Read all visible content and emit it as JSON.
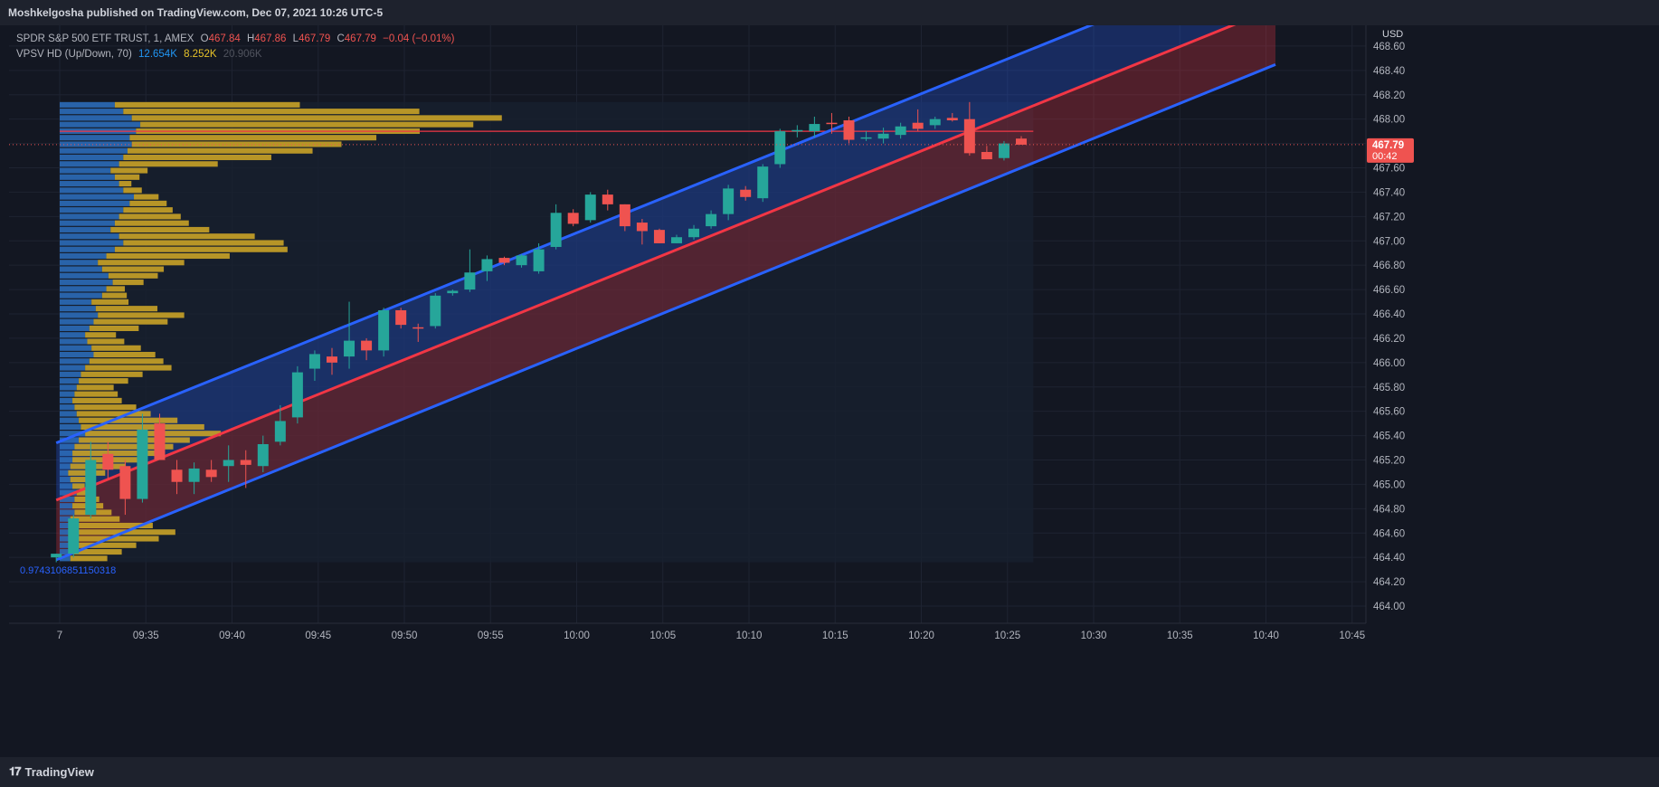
{
  "header": {
    "publisher": "Moshkelgosha published on TradingView.com, Dec 07, 2021 10:26 UTC-5"
  },
  "footer": {
    "brand": "TradingView"
  },
  "legend": {
    "symbol": "SPDR S&P 500 ETF TRUST, 1, AMEX",
    "o_label": "O",
    "o_value": "467.84",
    "h_label": "H",
    "h_value": "467.86",
    "l_label": "L",
    "l_value": "467.79",
    "c_label": "C",
    "c_value": "467.79",
    "change": "−0.04 (−0.01%)",
    "vpsv_label": "VPSV HD (Up/Down, 70)",
    "vpsv_up": "12.654K",
    "vpsv_down": "8.252K",
    "vpsv_total": "20.906K"
  },
  "colors": {
    "up": "#26a69a",
    "down": "#ef5350",
    "channel_blue": "#2962ff",
    "channel_red": "#f23645",
    "vp_up": "#2b6ab7",
    "vp_down": "#c9a227",
    "background": "#131722"
  },
  "chart_data": {
    "type": "candlestick",
    "title": "SPDR S&P 500 ETF TRUST, 1, AMEX",
    "currency": "USD",
    "ylim": [
      463.9,
      468.8
    ],
    "y_ticks": [
      "468.80",
      "468.60",
      "468.40",
      "468.20",
      "468.00",
      "467.80",
      "467.60",
      "467.40",
      "467.20",
      "467.00",
      "466.80",
      "466.60",
      "466.40",
      "466.20",
      "466.00",
      "465.80",
      "465.60",
      "465.40",
      "465.20",
      "465.00",
      "464.80",
      "464.60",
      "464.40",
      "464.20",
      "464.00"
    ],
    "x_ticks": [
      "7",
      "09:35",
      "09:40",
      "09:45",
      "09:50",
      "09:55",
      "10:00",
      "10:05",
      "10:10",
      "10:15",
      "10:20",
      "10:25",
      "10:30",
      "10:35",
      "10:40",
      "10:45"
    ],
    "x_tick_minutes": [
      30,
      35,
      40,
      45,
      50,
      55,
      60,
      65,
      70,
      75,
      80,
      85,
      90,
      95,
      100,
      105
    ],
    "last_price": "467.79",
    "countdown": "00:42",
    "regression_label": "0.97431068511503​18",
    "candles": [
      {
        "t": 29.8,
        "o": 464.4,
        "h": 464.43,
        "l": 464.36,
        "c": 464.43
      },
      {
        "t": 30.8,
        "o": 464.43,
        "h": 464.75,
        "l": 464.4,
        "c": 464.72
      },
      {
        "t": 31.8,
        "o": 464.75,
        "h": 465.35,
        "l": 464.72,
        "c": 465.2
      },
      {
        "t": 32.8,
        "o": 465.25,
        "h": 465.35,
        "l": 465.05,
        "c": 465.12
      },
      {
        "t": 33.8,
        "o": 465.15,
        "h": 465.2,
        "l": 464.75,
        "c": 464.88
      },
      {
        "t": 34.8,
        "o": 464.88,
        "h": 465.58,
        "l": 464.85,
        "c": 465.45
      },
      {
        "t": 35.8,
        "o": 465.5,
        "h": 465.58,
        "l": 465.2,
        "c": 465.2
      },
      {
        "t": 36.8,
        "o": 465.12,
        "h": 465.2,
        "l": 464.92,
        "c": 465.02
      },
      {
        "t": 37.8,
        "o": 465.02,
        "h": 465.18,
        "l": 464.92,
        "c": 465.13
      },
      {
        "t": 38.8,
        "o": 465.12,
        "h": 465.2,
        "l": 465.02,
        "c": 465.06
      },
      {
        "t": 39.8,
        "o": 465.15,
        "h": 465.32,
        "l": 465.02,
        "c": 465.2
      },
      {
        "t": 40.8,
        "o": 465.2,
        "h": 465.28,
        "l": 464.97,
        "c": 465.16
      },
      {
        "t": 41.8,
        "o": 465.15,
        "h": 465.4,
        "l": 465.1,
        "c": 465.33
      },
      {
        "t": 42.8,
        "o": 465.35,
        "h": 465.65,
        "l": 465.32,
        "c": 465.52
      },
      {
        "t": 43.8,
        "o": 465.55,
        "h": 465.97,
        "l": 465.5,
        "c": 465.92
      },
      {
        "t": 44.8,
        "o": 465.95,
        "h": 466.1,
        "l": 465.85,
        "c": 466.07
      },
      {
        "t": 45.8,
        "o": 466.05,
        "h": 466.12,
        "l": 465.9,
        "c": 466.0
      },
      {
        "t": 46.8,
        "o": 466.05,
        "h": 466.5,
        "l": 465.95,
        "c": 466.18
      },
      {
        "t": 47.8,
        "o": 466.18,
        "h": 466.2,
        "l": 466.02,
        "c": 466.1
      },
      {
        "t": 48.8,
        "o": 466.1,
        "h": 466.45,
        "l": 466.05,
        "c": 466.43
      },
      {
        "t": 49.8,
        "o": 466.43,
        "h": 466.45,
        "l": 466.28,
        "c": 466.31
      },
      {
        "t": 50.8,
        "o": 466.29,
        "h": 466.32,
        "l": 466.17,
        "c": 466.28
      },
      {
        "t": 51.8,
        "o": 466.3,
        "h": 466.57,
        "l": 466.28,
        "c": 466.55
      },
      {
        "t": 52.8,
        "o": 466.57,
        "h": 466.6,
        "l": 466.55,
        "c": 466.59
      },
      {
        "t": 53.8,
        "o": 466.6,
        "h": 466.93,
        "l": 466.58,
        "c": 466.74
      },
      {
        "t": 54.8,
        "o": 466.75,
        "h": 466.88,
        "l": 466.67,
        "c": 466.85
      },
      {
        "t": 55.8,
        "o": 466.86,
        "h": 466.87,
        "l": 466.8,
        "c": 466.82
      },
      {
        "t": 56.8,
        "o": 466.8,
        "h": 466.89,
        "l": 466.78,
        "c": 466.88
      },
      {
        "t": 57.8,
        "o": 466.75,
        "h": 466.98,
        "l": 466.73,
        "c": 466.93
      },
      {
        "t": 58.8,
        "o": 466.95,
        "h": 467.3,
        "l": 466.93,
        "c": 467.23
      },
      {
        "t": 59.8,
        "o": 467.23,
        "h": 467.26,
        "l": 467.12,
        "c": 467.14
      },
      {
        "t": 60.8,
        "o": 467.17,
        "h": 467.4,
        "l": 467.15,
        "c": 467.38
      },
      {
        "t": 61.8,
        "o": 467.38,
        "h": 467.42,
        "l": 467.25,
        "c": 467.3
      },
      {
        "t": 62.8,
        "o": 467.3,
        "h": 467.3,
        "l": 467.08,
        "c": 467.12
      },
      {
        "t": 63.8,
        "o": 467.15,
        "h": 467.18,
        "l": 466.97,
        "c": 467.08
      },
      {
        "t": 64.8,
        "o": 467.09,
        "h": 467.1,
        "l": 466.98,
        "c": 466.98
      },
      {
        "t": 65.8,
        "o": 466.98,
        "h": 467.05,
        "l": 466.98,
        "c": 467.03
      },
      {
        "t": 66.8,
        "o": 467.03,
        "h": 467.13,
        "l": 467.01,
        "c": 467.1
      },
      {
        "t": 67.8,
        "o": 467.12,
        "h": 467.25,
        "l": 467.1,
        "c": 467.22
      },
      {
        "t": 68.8,
        "o": 467.22,
        "h": 467.46,
        "l": 467.17,
        "c": 467.43
      },
      {
        "t": 69.8,
        "o": 467.42,
        "h": 467.45,
        "l": 467.33,
        "c": 467.36
      },
      {
        "t": 70.8,
        "o": 467.35,
        "h": 467.63,
        "l": 467.32,
        "c": 467.61
      },
      {
        "t": 71.8,
        "o": 467.63,
        "h": 467.92,
        "l": 467.6,
        "c": 467.9
      },
      {
        "t": 72.8,
        "o": 467.9,
        "h": 467.95,
        "l": 467.85,
        "c": 467.91
      },
      {
        "t": 73.8,
        "o": 467.9,
        "h": 468.02,
        "l": 467.85,
        "c": 467.96
      },
      {
        "t": 74.8,
        "o": 467.97,
        "h": 468.05,
        "l": 467.88,
        "c": 467.96
      },
      {
        "t": 75.8,
        "o": 467.99,
        "h": 468.02,
        "l": 467.8,
        "c": 467.83
      },
      {
        "t": 76.8,
        "o": 467.85,
        "h": 467.9,
        "l": 467.82,
        "c": 467.85
      },
      {
        "t": 77.8,
        "o": 467.84,
        "h": 467.93,
        "l": 467.8,
        "c": 467.88
      },
      {
        "t": 78.8,
        "o": 467.87,
        "h": 467.97,
        "l": 467.84,
        "c": 467.94
      },
      {
        "t": 79.8,
        "o": 467.97,
        "h": 468.08,
        "l": 467.9,
        "c": 467.92
      },
      {
        "t": 80.8,
        "o": 467.95,
        "h": 468.02,
        "l": 467.92,
        "c": 468.0
      },
      {
        "t": 81.8,
        "o": 468.01,
        "h": 468.05,
        "l": 467.98,
        "c": 467.99
      },
      {
        "t": 82.8,
        "o": 468.0,
        "h": 468.14,
        "l": 467.7,
        "c": 467.72
      },
      {
        "t": 83.8,
        "o": 467.73,
        "h": 467.78,
        "l": 467.67,
        "c": 467.67
      },
      {
        "t": 84.8,
        "o": 467.68,
        "h": 467.82,
        "l": 467.66,
        "c": 467.8
      },
      {
        "t": 85.8,
        "o": 467.84,
        "h": 467.86,
        "l": 467.79,
        "c": 467.79
      }
    ],
    "channel": {
      "start": {
        "t": 29.8,
        "center": 464.87,
        "upper": 465.34,
        "lower": 464.38
      },
      "end": {
        "t": 85.8,
        "center": 468.07,
        "upper": 468.54,
        "lower": 467.6
      }
    },
    "volume_profile": {
      "price_from": 464.36,
      "price_to": 468.14,
      "rows": 70,
      "poc_price": 467.9,
      "up": [
        5,
        6,
        7,
        6,
        8,
        9,
        5,
        7,
        6,
        7,
        8,
        6,
        5,
        4,
        5,
        6,
        6,
        7,
        9,
        12,
        10,
        9,
        8,
        7,
        6,
        7,
        8,
        9,
        10,
        12,
        14,
        16,
        15,
        13,
        12,
        14,
        16,
        18,
        17,
        15,
        20,
        22,
        25,
        23,
        20,
        18,
        22,
        26,
        30,
        28,
        24,
        26,
        28,
        30,
        33,
        35,
        30,
        28,
        26,
        24,
        28,
        30,
        32,
        34,
        33,
        36,
        38,
        34,
        30,
        26
      ],
      "down": [
        6,
        8,
        10,
        14,
        16,
        12,
        8,
        6,
        5,
        4,
        3,
        2,
        4,
        6,
        9,
        12,
        14,
        16,
        18,
        22,
        20,
        16,
        12,
        10,
        8,
        7,
        6,
        8,
        10,
        14,
        12,
        10,
        8,
        6,
        5,
        8,
        12,
        14,
        10,
        6,
        4,
        3,
        5,
        8,
        10,
        14,
        20,
        28,
        26,
        22,
        16,
        12,
        10,
        8,
        6,
        4,
        3,
        2,
        4,
        6,
        16,
        24,
        30,
        34,
        40,
        46,
        54,
        60,
        48,
        30
      ]
    }
  }
}
